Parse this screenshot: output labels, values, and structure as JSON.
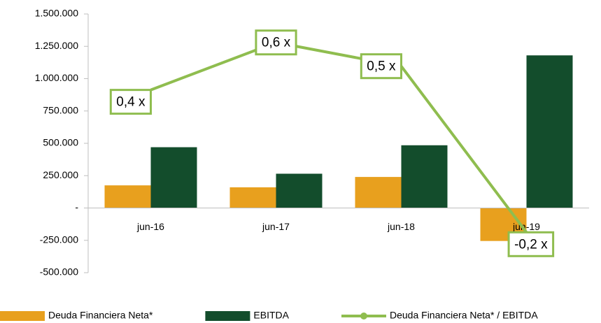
{
  "chart_data": {
    "type": "bar",
    "categories": [
      "jun-16",
      "jun-17",
      "jun-18",
      "jun-19"
    ],
    "series": [
      {
        "name": "Deuda Financiera Neta*",
        "color": "#e8a01e",
        "values": [
          175000,
          160000,
          240000,
          -255000
        ]
      },
      {
        "name": "EBITDA",
        "color": "#134d2c",
        "values": [
          470000,
          265000,
          485000,
          1180000
        ]
      },
      {
        "name": "Deuda Financiera Neta* / EBITDA",
        "type": "line",
        "axis": "y2",
        "color": "#8fbd4f",
        "values": [
          0.4,
          0.6,
          0.5,
          -0.2
        ],
        "value_labels": [
          "0,4 x",
          "0,6 x",
          "0,5 x",
          "-0,2  x"
        ]
      }
    ],
    "ylim": [
      -500000,
      1500000
    ],
    "yticks": [
      {
        "value": -500000,
        "label": "-500.000"
      },
      {
        "value": -250000,
        "label": "-250.000"
      },
      {
        "value": 0,
        "label": "-"
      },
      {
        "value": 250000,
        "label": "250.000"
      },
      {
        "value": 500000,
        "label": "500.000"
      },
      {
        "value": 750000,
        "label": "750.000"
      },
      {
        "value": 1000000,
        "label": "1.000.000"
      },
      {
        "value": 1250000,
        "label": "1.250.000"
      },
      {
        "value": 1500000,
        "label": "1.500.000"
      }
    ],
    "y2lim": [
      -0.37,
      0.72
    ],
    "legend": "bottom"
  }
}
